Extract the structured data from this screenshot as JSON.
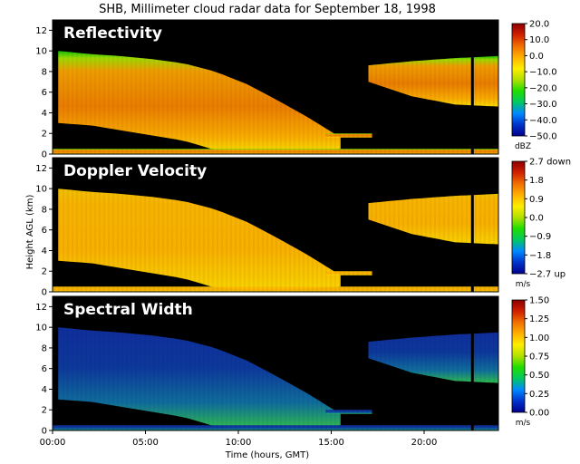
{
  "chart_data": {
    "type": "heatmap",
    "title": "SHB, Millimeter cloud radar data for September 18, 1998",
    "xlabel": "Time (hours, GMT)",
    "ylabel": "Height AGL (km)",
    "xlim": [
      0,
      24
    ],
    "ylim": [
      0,
      13
    ],
    "x_ticks": [
      {
        "value": 0,
        "label": "00:00"
      },
      {
        "value": 5,
        "label": "05:00"
      },
      {
        "value": 10,
        "label": "10:00"
      },
      {
        "value": 15,
        "label": "15:00"
      },
      {
        "value": 20,
        "label": "20:00"
      }
    ],
    "y_ticks": [
      0,
      2,
      4,
      6,
      8,
      10,
      12
    ],
    "panels": [
      {
        "name": "Reflectivity",
        "unit": "dBZ",
        "colorbar_ticks": [
          {
            "value": 20,
            "label": "20.0"
          },
          {
            "value": 10,
            "label": "10.0"
          },
          {
            "value": 0,
            "label": "0.0"
          },
          {
            "value": -10,
            "label": "−10.0"
          },
          {
            "value": -20,
            "label": "−20.0"
          },
          {
            "value": -30,
            "label": "−30.0"
          },
          {
            "value": -40,
            "label": "−40.0"
          },
          {
            "value": -50,
            "label": "−50.0"
          }
        ],
        "colorbar_range": [
          -50,
          20
        ]
      },
      {
        "name": "Doppler Velocity",
        "unit": "m/s",
        "colorbar_ticks": [
          {
            "value": 2.7,
            "label": "2.7 down"
          },
          {
            "value": 1.8,
            "label": "1.8"
          },
          {
            "value": 0.9,
            "label": "0.9"
          },
          {
            "value": 0.0,
            "label": "0.0"
          },
          {
            "value": -0.9,
            "label": "−0.9"
          },
          {
            "value": -1.8,
            "label": "−1.8"
          },
          {
            "value": -2.7,
            "label": "−2.7 up"
          }
        ],
        "colorbar_range": [
          -2.7,
          2.7
        ]
      },
      {
        "name": "Spectral Width",
        "unit": "m/s",
        "colorbar_ticks": [
          {
            "value": 1.5,
            "label": "1.50"
          },
          {
            "value": 1.25,
            "label": "1.25"
          },
          {
            "value": 1.0,
            "label": "1.00"
          },
          {
            "value": 0.75,
            "label": "0.75"
          },
          {
            "value": 0.5,
            "label": "0.50"
          },
          {
            "value": 0.25,
            "label": "0.25"
          },
          {
            "value": 0.0,
            "label": "0.00"
          }
        ],
        "colorbar_range": [
          0,
          1.5
        ]
      }
    ],
    "echo_regions": [
      {
        "desc": "main cloud deck",
        "x_start": 0.3,
        "x_end": 15.5,
        "top_km": [
          10.0,
          9.7,
          9.5,
          9.2,
          8.8,
          8.0,
          6.8,
          5.2,
          3.5,
          1.6
        ],
        "base_km": [
          3.0,
          2.8,
          2.3,
          1.8,
          1.3,
          0.4,
          0.2,
          0.2,
          0.3,
          0.5
        ]
      },
      {
        "desc": "evening upper cloud",
        "x_start": 17.0,
        "x_end": 24.0,
        "top_km": [
          8.6,
          9.0,
          9.3,
          9.5
        ],
        "base_km": [
          7.0,
          5.6,
          4.8,
          4.6
        ]
      },
      {
        "desc": "low cloud layer",
        "x_start": 14.7,
        "x_end": 17.2,
        "top_km": 2.0,
        "base_km": 1.6
      },
      {
        "desc": "surface echo",
        "x_start": 0.0,
        "x_end": 24.0,
        "top_km": 0.5,
        "base_km": 0.0
      }
    ],
    "colormap": [
      "#00008b",
      "#0033cc",
      "#0088ff",
      "#00c864",
      "#20dd00",
      "#b0e000",
      "#ffee00",
      "#ffb000",
      "#f07000",
      "#d02000",
      "#8b0000"
    ]
  }
}
